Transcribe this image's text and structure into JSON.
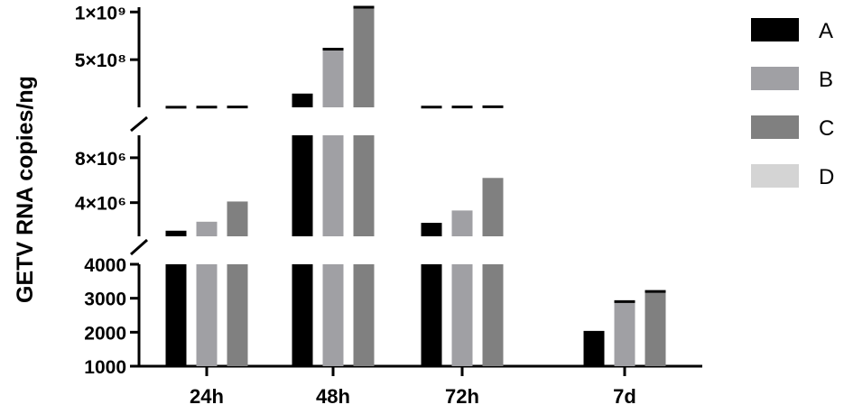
{
  "chart_data": {
    "type": "bar",
    "ylabel": "GETV RNA copies/ng",
    "xlabel": "",
    "title": "",
    "categories": [
      "24h",
      "48h",
      "72h",
      "7d"
    ],
    "broken_y_axis": true,
    "y_segments": [
      {
        "range": [
          1000,
          4000
        ],
        "ticks": [
          "1000",
          "2000",
          "3000",
          "4000"
        ]
      },
      {
        "range": [
          1000000,
          10000000
        ],
        "ticks": [
          "4×10⁶",
          "8×10⁶"
        ]
      },
      {
        "range": [
          0,
          1050000000
        ],
        "ticks": [
          "5×10⁸",
          "1×10⁹"
        ]
      }
    ],
    "series": [
      {
        "name": "A",
        "color": "#000000",
        "values": [
          1500000,
          130000000,
          2200000,
          2000
        ],
        "errors": [
          0,
          10000000,
          0,
          0
        ]
      },
      {
        "name": "B",
        "color": "#a0a0a4",
        "values": [
          2300000,
          610000000,
          3300000,
          2900
        ],
        "errors": [
          0,
          0,
          0,
          0
        ]
      },
      {
        "name": "C",
        "color": "#808080",
        "values": [
          4100000,
          1100000000,
          6200000,
          3200
        ],
        "errors": [
          0,
          0,
          0,
          0
        ]
      },
      {
        "name": "D",
        "color": "#d4d4d4",
        "values": [
          0,
          0,
          0,
          0
        ],
        "errors": [
          0,
          0,
          0,
          0
        ]
      }
    ],
    "legend_position": "right"
  }
}
